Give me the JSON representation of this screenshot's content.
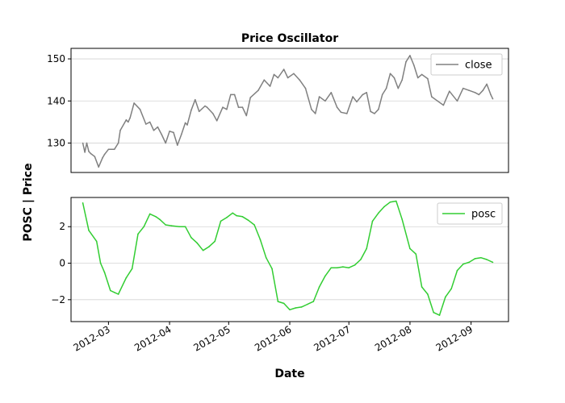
{
  "chart_data": [
    {
      "type": "line",
      "title": "Price Oscillator",
      "ylim": [
        123,
        152.5
      ],
      "yticks": [
        130,
        140,
        150
      ],
      "grid": true,
      "legend": "top-right",
      "series": [
        {
          "name": "close",
          "color": "#808080",
          "x": [
            "2012-02-17",
            "2012-02-18",
            "2012-02-19",
            "2012-02-20",
            "2012-02-21",
            "2012-02-23",
            "2012-02-25",
            "2012-02-27",
            "2012-02-28",
            "2012-03-01",
            "2012-03-04",
            "2012-03-06",
            "2012-03-07",
            "2012-03-10",
            "2012-03-11",
            "2012-03-12",
            "2012-03-14",
            "2012-03-17",
            "2012-03-20",
            "2012-03-22",
            "2012-03-24",
            "2012-03-26",
            "2012-03-28",
            "2012-03-30",
            "2012-04-01",
            "2012-04-03",
            "2012-04-05",
            "2012-04-07",
            "2012-04-09",
            "2012-04-10",
            "2012-04-12",
            "2012-04-14",
            "2012-04-16",
            "2012-04-19",
            "2012-04-20",
            "2012-04-23",
            "2012-04-25",
            "2012-04-28",
            "2012-04-30",
            "2012-05-02",
            "2012-05-04",
            "2012-05-06",
            "2012-05-08",
            "2012-05-10",
            "2012-05-12",
            "2012-05-16",
            "2012-05-19",
            "2012-05-22",
            "2012-05-24",
            "2012-05-26",
            "2012-05-29",
            "2012-05-31",
            "2012-06-03",
            "2012-06-06",
            "2012-06-09",
            "2012-06-12",
            "2012-06-14",
            "2012-06-16",
            "2012-06-19",
            "2012-06-22",
            "2012-06-25",
            "2012-06-27",
            "2012-06-30",
            "2012-07-03",
            "2012-07-05",
            "2012-07-08",
            "2012-07-10",
            "2012-07-12",
            "2012-07-14",
            "2012-07-16",
            "2012-07-18",
            "2012-07-20",
            "2012-07-22",
            "2012-07-24",
            "2012-07-26",
            "2012-07-28",
            "2012-07-30",
            "2012-08-01",
            "2012-08-03",
            "2012-08-05",
            "2012-08-07",
            "2012-08-10",
            "2012-08-12",
            "2012-08-15",
            "2012-08-18",
            "2012-08-21",
            "2012-08-25",
            "2012-08-28",
            "2012-08-31",
            "2012-09-03",
            "2012-09-05",
            "2012-09-07",
            "2012-09-09",
            "2012-09-11",
            "2012-09-12"
          ],
          "y": [
            130,
            127.8,
            130,
            128,
            127.5,
            126.8,
            124.3,
            126.5,
            127.3,
            128.5,
            128.5,
            130,
            133,
            135.5,
            135,
            136,
            139.5,
            138,
            134.5,
            135,
            133,
            133.8,
            132,
            130,
            132.8,
            132.5,
            129.5,
            132,
            134.8,
            134.3,
            137.8,
            140.3,
            137.5,
            138.8,
            138.5,
            137,
            135.3,
            138.5,
            138,
            141.5,
            141.5,
            138.5,
            138.5,
            136.5,
            140.8,
            142.5,
            145,
            143.5,
            146.3,
            145.5,
            147.5,
            145.5,
            146.5,
            145,
            143,
            138,
            137,
            141,
            140,
            142,
            138.5,
            137.3,
            137,
            141,
            139.8,
            141.5,
            142,
            137.5,
            137,
            138,
            141.5,
            143,
            146.5,
            145.5,
            143,
            145,
            149.3,
            150.8,
            148.5,
            145.5,
            146.3,
            145.3,
            141,
            140,
            139,
            142.3,
            140,
            143,
            142.5,
            142,
            141.5,
            142.5,
            144,
            141.5,
            140.5
          ]
        }
      ]
    },
    {
      "type": "line",
      "ylim": [
        -3.2,
        3.6
      ],
      "yticks": [
        -2,
        0,
        2
      ],
      "grid": true,
      "legend": "top-right",
      "series": [
        {
          "name": "posc",
          "color": "#32cd32",
          "x": [
            "2012-02-17",
            "2012-02-20",
            "2012-02-24",
            "2012-02-26",
            "2012-02-28",
            "2012-03-02",
            "2012-03-04",
            "2012-03-06",
            "2012-03-10",
            "2012-03-13",
            "2012-03-16",
            "2012-03-19",
            "2012-03-22",
            "2012-03-25",
            "2012-03-27",
            "2012-03-30",
            "2012-04-02",
            "2012-04-06",
            "2012-04-09",
            "2012-04-12",
            "2012-04-15",
            "2012-04-18",
            "2012-04-21",
            "2012-04-24",
            "2012-04-27",
            "2012-04-30",
            "2012-05-03",
            "2012-05-05",
            "2012-05-08",
            "2012-05-11",
            "2012-05-14",
            "2012-05-17",
            "2012-05-20",
            "2012-05-23",
            "2012-05-26",
            "2012-05-29",
            "2012-06-01",
            "2012-06-04",
            "2012-06-07",
            "2012-06-10",
            "2012-06-13",
            "2012-06-16",
            "2012-06-19",
            "2012-06-22",
            "2012-06-25",
            "2012-06-28",
            "2012-07-01",
            "2012-07-04",
            "2012-07-07",
            "2012-07-10",
            "2012-07-13",
            "2012-07-16",
            "2012-07-19",
            "2012-07-22",
            "2012-07-25",
            "2012-07-28",
            "2012-08-01",
            "2012-08-04",
            "2012-08-07",
            "2012-08-10",
            "2012-08-13",
            "2012-08-16",
            "2012-08-19",
            "2012-08-22",
            "2012-08-25",
            "2012-08-28",
            "2012-08-31",
            "2012-09-03",
            "2012-09-06",
            "2012-09-09",
            "2012-09-12"
          ],
          "y": [
            3.3,
            1.8,
            1.2,
            0,
            -0.5,
            -1.5,
            -1.6,
            -1.7,
            -0.8,
            -0.3,
            1.6,
            2.0,
            2.7,
            2.55,
            2.4,
            2.1,
            2.05,
            2.0,
            2.0,
            1.4,
            1.1,
            0.7,
            0.9,
            1.2,
            2.3,
            2.5,
            2.75,
            2.6,
            2.55,
            2.35,
            2.1,
            1.3,
            0.3,
            -0.3,
            -2.1,
            -2.2,
            -2.55,
            -2.45,
            -2.4,
            -2.25,
            -2.1,
            -1.3,
            -0.7,
            -0.25,
            -0.25,
            -0.2,
            -0.25,
            -0.1,
            0.2,
            0.8,
            2.3,
            2.75,
            3.1,
            3.35,
            3.4,
            2.4,
            0.8,
            0.5,
            -1.3,
            -1.7,
            -2.7,
            -2.85,
            -1.85,
            -1.4,
            -0.4,
            -0.05,
            0.05,
            0.25,
            0.3,
            0.2,
            0.05
          ]
        }
      ]
    }
  ],
  "xaxis": {
    "label": "Date",
    "range": [
      "2012-02-11",
      "2012-09-20"
    ],
    "ticks": [
      "2012-03-01",
      "2012-04-01",
      "2012-05-01",
      "2012-06-01",
      "2012-07-01",
      "2012-08-01",
      "2012-09-01"
    ],
    "tick_labels": [
      "2012-03",
      "2012-04",
      "2012-05",
      "2012-06",
      "2012-07",
      "2012-08",
      "2012-09"
    ]
  },
  "yaxis_label": "POSC | Price"
}
